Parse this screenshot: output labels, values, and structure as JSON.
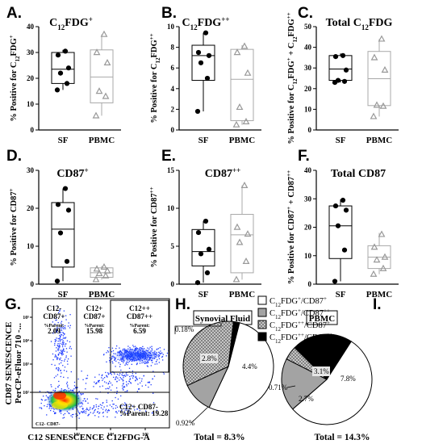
{
  "chart_data": [
    {
      "type": "box",
      "letter": "A.",
      "title": "C12FDG+",
      "ylabel": "% Positive for C12FDG+",
      "ylim": [
        0,
        40
      ],
      "yticks": [
        "0",
        "10",
        "20",
        "30",
        "40"
      ],
      "categories": [
        "SF",
        "PBMC"
      ],
      "series": [
        {
          "name": "SF",
          "values": [
            15.5,
            18,
            22,
            24,
            29,
            30.5
          ],
          "box": {
            "min": 15.5,
            "q1": 18,
            "median": 23.5,
            "q3": 30,
            "max": 31
          }
        },
        {
          "name": "PBMC",
          "values": [
            5.5,
            13,
            15,
            26,
            30,
            37
          ],
          "box": {
            "min": 5.5,
            "q1": 10.5,
            "median": 20.5,
            "q3": 31,
            "max": 37
          }
        }
      ]
    },
    {
      "type": "box",
      "letter": "B.",
      "title": "C12FDG++",
      "ylabel": "% Positive for C12FDG++",
      "ylim": [
        0,
        10
      ],
      "yticks": [
        "0",
        "2",
        "4",
        "6",
        "8",
        "10"
      ],
      "categories": [
        "SF",
        "PBMC"
      ],
      "series": [
        {
          "name": "SF",
          "values": [
            1.8,
            5,
            6.5,
            7.2,
            7.5,
            9.4
          ],
          "box": {
            "min": 1.8,
            "q1": 4.8,
            "median": 7.2,
            "q3": 8.2,
            "max": 9.4
          }
        },
        {
          "name": "PBMC",
          "values": [
            0.5,
            0.8,
            2.2,
            5.5,
            7.5,
            8.1
          ],
          "box": {
            "min": 0.5,
            "q1": 0.9,
            "median": 4.9,
            "q3": 7.8,
            "max": 8.2
          }
        }
      ]
    },
    {
      "type": "box",
      "letter": "C.",
      "title": "Total C12FDG",
      "ylabel": "% Positive for C12FDG+ + C12FDG++",
      "ylim": [
        0,
        50
      ],
      "yticks": [
        "0",
        "10",
        "20",
        "30",
        "40",
        "50"
      ],
      "categories": [
        "SF",
        "PBMC"
      ],
      "series": [
        {
          "name": "SF",
          "values": [
            23,
            23.5,
            24,
            29,
            35.5,
            36
          ],
          "box": {
            "min": 23,
            "q1": 24,
            "median": 29.5,
            "q3": 36,
            "max": 37
          }
        },
        {
          "name": "PBMC",
          "values": [
            6.5,
            11.5,
            12,
            29,
            35,
            44
          ],
          "box": {
            "min": 6.5,
            "q1": 11.8,
            "median": 24.8,
            "q3": 38,
            "max": 44
          }
        }
      ]
    },
    {
      "type": "box",
      "letter": "D.",
      "title": "CD87+",
      "ylabel": "% Positive for CD87+",
      "ylim": [
        0,
        30
      ],
      "yticks": [
        "0",
        "10",
        "20",
        "30"
      ],
      "categories": [
        "SF",
        "PBMC"
      ],
      "series": [
        {
          "name": "SF",
          "values": [
            0.8,
            6,
            13.5,
            19.5,
            21,
            25.2
          ],
          "box": {
            "min": 0.8,
            "q1": 4.5,
            "median": 14.5,
            "q3": 21.5,
            "max": 25.2
          }
        },
        {
          "name": "PBMC",
          "values": [
            1.2,
            2.2,
            2.8,
            3.5,
            4,
            4.5
          ],
          "box": {
            "min": 1.2,
            "q1": 1.8,
            "median": 3,
            "q3": 4.3,
            "max": 4.8
          }
        }
      ]
    },
    {
      "type": "box",
      "letter": "E.",
      "title": "CD87++",
      "ylabel": "% Positive for CD87++",
      "ylim": [
        0,
        15
      ],
      "yticks": [
        "0",
        "5",
        "10",
        "15"
      ],
      "categories": [
        "SF",
        "PBMC"
      ],
      "series": [
        {
          "name": "SF",
          "values": [
            0.2,
            1.5,
            4,
            4.6,
            6.8,
            8.3
          ],
          "box": {
            "min": 0.2,
            "q1": 2.4,
            "median": 4.3,
            "q3": 7.2,
            "max": 8.3
          }
        },
        {
          "name": "PBMC",
          "values": [
            0.6,
            3,
            5.5,
            6.6,
            7.5,
            13
          ],
          "box": {
            "min": 0.6,
            "q1": 1.5,
            "median": 6.5,
            "q3": 9.2,
            "max": 13
          }
        }
      ]
    },
    {
      "type": "box",
      "letter": "F.",
      "title": "Total CD87",
      "ylabel": "% Positive for CD87+ + CD87++",
      "ylim": [
        0,
        40
      ],
      "yticks": [
        "0",
        "10",
        "20",
        "30",
        "40"
      ],
      "categories": [
        "SF",
        "PBMC"
      ],
      "series": [
        {
          "name": "SF",
          "values": [
            1,
            12,
            20.5,
            26,
            27.5,
            29.5
          ],
          "box": {
            "min": 1,
            "q1": 9,
            "median": 20.5,
            "q3": 27.5,
            "max": 29.8
          }
        },
        {
          "name": "PBMC",
          "values": [
            3.5,
            5.5,
            8.5,
            9.5,
            13,
            17.5
          ],
          "box": {
            "min": 3.5,
            "q1": 5.5,
            "median": 9.5,
            "q3": 13.5,
            "max": 18
          }
        }
      ]
    },
    {
      "type": "flow_cytometry",
      "letter": "G.",
      "xlabel": "C12 SENESCENCE C12FDG-A",
      "ylabel": [
        "CD87 SENESCENCE",
        "PerCP-eFluor 710 -..."
      ],
      "gates": [
        {
          "lines": [
            "C12-",
            "CD87+",
            "%Parent:",
            "2.09"
          ]
        },
        {
          "lines": [
            "C12+",
            "CD87+",
            "%Parent:",
            "15.98"
          ]
        },
        {
          "lines": [
            "C12++",
            "CD87++",
            "%Parent:",
            "6.59"
          ]
        },
        {
          "lines": [
            "C12+ CD87-",
            "%Parent: 19.28"
          ]
        },
        {
          "lines": [
            "C12- CD87-"
          ]
        }
      ],
      "x_ticks": [
        "10³",
        "10⁴",
        "10⁵"
      ],
      "y_ticks": [
        "10⁵",
        "10⁴",
        "10³",
        "10²"
      ]
    },
    {
      "type": "pie",
      "letter": "H.",
      "title": "Synovial Fluid",
      "slice_labels": [
        "4.4%",
        "0.92%",
        "2.8%",
        "0.18%"
      ],
      "values": [
        4.4,
        0.92,
        2.8,
        0.18
      ],
      "total": "Total = 8.3%"
    },
    {
      "type": "pie",
      "letter": "I.",
      "title": "PBMC",
      "slice_labels": [
        "7.8%",
        "2.7%",
        "0.71%",
        "3.1%"
      ],
      "values": [
        7.8,
        2.7,
        0.71,
        3.1
      ],
      "total": "Total = 14.3%"
    }
  ],
  "legend": [
    {
      "label": "C12FDG+/CD87+",
      "color": "#ffffff"
    },
    {
      "label": "C12FDG+/CD87++",
      "color": "#a3a3a3"
    },
    {
      "label": "C12FDG++/CD87+",
      "color": "#d0d0d0"
    },
    {
      "label": "C12FDG++/CD87++",
      "color": "#000000"
    }
  ]
}
